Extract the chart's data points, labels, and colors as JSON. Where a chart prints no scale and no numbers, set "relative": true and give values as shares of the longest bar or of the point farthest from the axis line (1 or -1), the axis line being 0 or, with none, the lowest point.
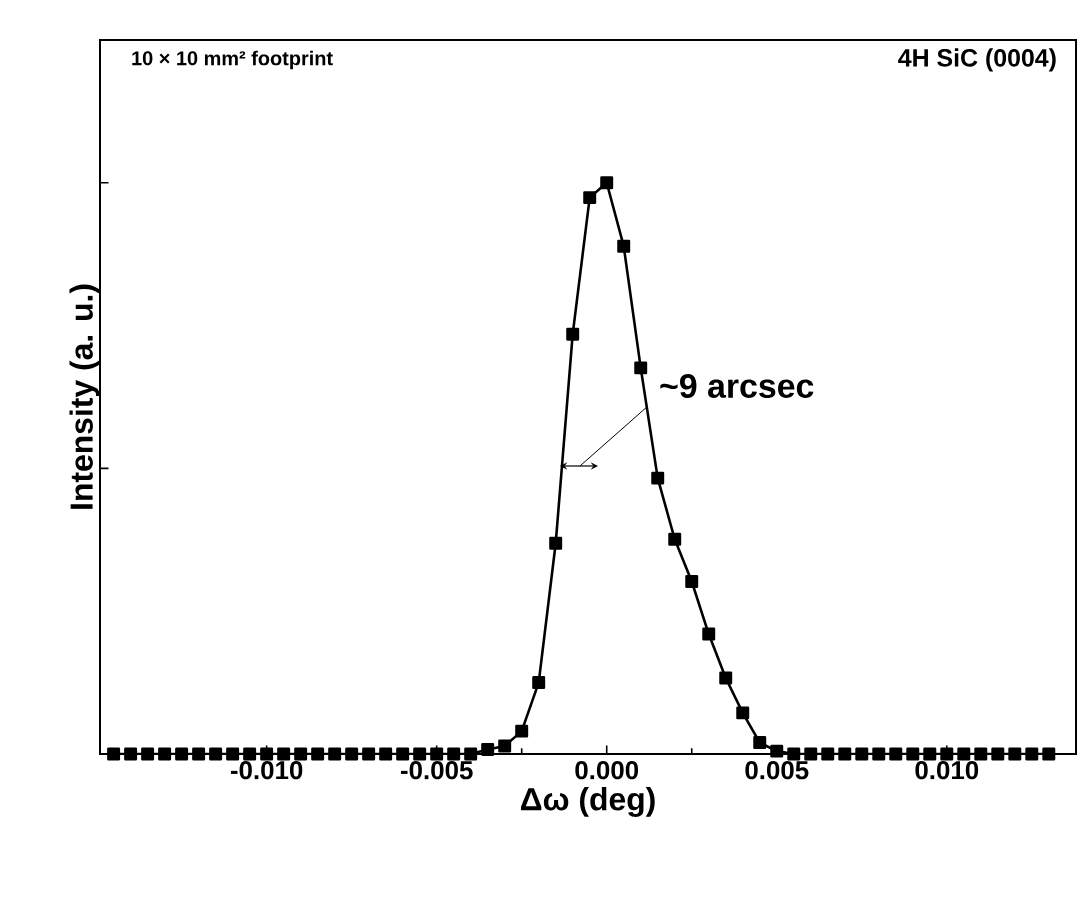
{
  "chart_data": {
    "type": "line",
    "relative": true,
    "xlabel": "Δω (deg)",
    "ylabel": "Intensity (a. u.)",
    "xlim": [
      -0.0149,
      0.0138
    ],
    "xticks": [
      {
        "value": -0.01,
        "label": "-0.010"
      },
      {
        "value": -0.005,
        "label": "-0.005"
      },
      {
        "value": 0,
        "label": "0.000"
      },
      {
        "value": 0.005,
        "label": "0.005"
      },
      {
        "value": 0.01,
        "label": "0.010"
      }
    ],
    "marker": "square",
    "line_style": "solid",
    "annotations": [
      "10 × 10 mm² footprint",
      "4H SiC (0004)",
      "~9 arcsec"
    ],
    "series": [
      {
        "color": "#000000",
        "x": [
          -0.0145,
          -0.014,
          -0.0135,
          -0.013,
          -0.0125,
          -0.012,
          -0.0115,
          -0.011,
          -0.0105,
          -0.01,
          -0.0095,
          -0.009,
          -0.0085,
          -0.008,
          -0.0075,
          -0.007,
          -0.0065,
          -0.006,
          -0.0055,
          -0.005,
          -0.0045,
          -0.004,
          -0.0035,
          -0.003,
          -0.0025,
          -0.002,
          -0.0015,
          -0.001,
          -0.0005,
          0,
          0.0005,
          0.001,
          0.0015,
          0.002,
          0.0025,
          0.003,
          0.0035,
          0.004,
          0.0045,
          0.005,
          0.0055,
          0.006,
          0.0065,
          0.007,
          0.0075,
          0.008,
          0.0085,
          0.009,
          0.0095,
          0.01,
          0.0105,
          0.011,
          0.0115,
          0.012,
          0.0125,
          0.013
        ],
        "values": [
          0,
          0,
          0,
          0,
          0,
          0,
          0,
          0,
          0,
          0,
          0,
          0,
          0,
          0,
          0,
          0,
          0,
          0,
          0,
          0,
          0,
          0,
          0.008,
          0.014,
          0.04,
          0.125,
          0.369,
          0.735,
          0.974,
          1,
          0.889,
          0.676,
          0.483,
          0.376,
          0.302,
          0.21,
          0.133,
          0.072,
          0.02,
          0.005,
          0,
          0,
          0,
          0,
          0,
          0,
          0,
          0,
          0,
          0,
          0,
          0,
          0,
          0,
          0,
          0
        ]
      }
    ]
  }
}
